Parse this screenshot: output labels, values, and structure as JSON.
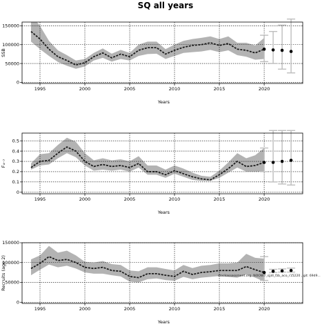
{
  "title": "SQ all years",
  "watermark": "stockassessment.org, NOOW7_sjjdl_fzb_aco_r15220 , git: 69d9...",
  "colors": {
    "band": "#b3b3b3",
    "line": "#1a1a1a",
    "errorbar": "#bdbdbd",
    "point": "#000000"
  },
  "chart_data": [
    {
      "type": "line",
      "panel": "ssb",
      "xlabel": "Years",
      "ylabel": "SSB",
      "xlim": [
        1993,
        2024.3
      ],
      "ylim": [
        -3000,
        160000
      ],
      "x_ticks": [
        1995,
        2000,
        2005,
        2010,
        2015,
        2020
      ],
      "y_ticks": [
        0,
        50000,
        100000,
        150000
      ],
      "grid": true,
      "series": [
        {
          "x": [
            1994,
            1995,
            1996,
            1997,
            1998,
            1999,
            2000,
            2001,
            2002,
            2003,
            2004,
            2005,
            2006,
            2007,
            2008,
            2009,
            2010,
            2011,
            2012,
            2013,
            2014,
            2015,
            2016,
            2017,
            2018,
            2019,
            2020
          ],
          "estimate": [
            135000,
            115000,
            88000,
            68000,
            58000,
            46000,
            52000,
            68000,
            78000,
            65000,
            75000,
            68000,
            85000,
            92000,
            92000,
            75000,
            85000,
            93000,
            98000,
            100000,
            105000,
            98000,
            103000,
            88000,
            85000,
            78000,
            88000
          ],
          "lower": [
            108000,
            88000,
            70000,
            54000,
            44000,
            36000,
            42000,
            58000,
            65000,
            55000,
            62000,
            58000,
            70000,
            75000,
            76000,
            62000,
            70000,
            78000,
            80000,
            82000,
            86000,
            80000,
            85000,
            72000,
            68000,
            60000,
            62000
          ],
          "upper": [
            180000,
            150000,
            110000,
            85000,
            72000,
            58000,
            62000,
            78000,
            90000,
            76000,
            86000,
            78000,
            100000,
            108000,
            108000,
            88000,
            100000,
            110000,
            115000,
            118000,
            122000,
            115000,
            122000,
            105000,
            105000,
            98000,
            118000
          ]
        }
      ],
      "forecast": {
        "x": [
          2020,
          2021,
          2022,
          2023
        ],
        "estimate": [
          88000,
          86000,
          85000,
          82000
        ],
        "lower": [
          55000,
          50000,
          35000,
          25000
        ],
        "upper": [
          125000,
          135000,
          152000,
          168000
        ]
      }
    },
    {
      "type": "line",
      "panel": "fbar",
      "xlabel": "Years",
      "ylabel": "F₄₋₇",
      "xlim": [
        1993,
        2024.3
      ],
      "ylim": [
        -0.015,
        0.575
      ],
      "x_ticks": [
        1995,
        2000,
        2005,
        2010,
        2015,
        2020
      ],
      "y_ticks": [
        0,
        0.1,
        0.2,
        0.3,
        0.4,
        0.5
      ],
      "grid": true,
      "series": [
        {
          "x": [
            1994,
            1995,
            1996,
            1997,
            1998,
            1999,
            2000,
            2001,
            2002,
            2003,
            2004,
            2005,
            2006,
            2007,
            2008,
            2009,
            2010,
            2011,
            2012,
            2013,
            2014,
            2015,
            2016,
            2017,
            2018,
            2019,
            2020
          ],
          "estimate": [
            0.24,
            0.3,
            0.31,
            0.38,
            0.44,
            0.4,
            0.3,
            0.25,
            0.27,
            0.25,
            0.26,
            0.24,
            0.28,
            0.2,
            0.2,
            0.17,
            0.21,
            0.18,
            0.15,
            0.13,
            0.12,
            0.17,
            0.23,
            0.3,
            0.25,
            0.26,
            0.29
          ],
          "lower": [
            0.22,
            0.26,
            0.27,
            0.33,
            0.38,
            0.34,
            0.26,
            0.21,
            0.22,
            0.21,
            0.22,
            0.2,
            0.24,
            0.17,
            0.17,
            0.14,
            0.18,
            0.15,
            0.12,
            0.11,
            0.11,
            0.14,
            0.19,
            0.24,
            0.2,
            0.2,
            0.2
          ],
          "upper": [
            0.28,
            0.37,
            0.38,
            0.46,
            0.53,
            0.49,
            0.38,
            0.31,
            0.33,
            0.31,
            0.32,
            0.3,
            0.35,
            0.26,
            0.26,
            0.22,
            0.26,
            0.23,
            0.19,
            0.16,
            0.15,
            0.21,
            0.29,
            0.38,
            0.33,
            0.36,
            0.43
          ]
        }
      ],
      "forecast": {
        "x": [
          2020,
          2021,
          2022,
          2023
        ],
        "estimate": [
          0.29,
          0.29,
          0.3,
          0.31
        ],
        "lower": [
          0.2,
          0.1,
          0.08,
          0.07
        ],
        "upper": [
          0.43,
          0.6,
          0.6,
          0.6
        ]
      }
    },
    {
      "type": "line",
      "panel": "recruits",
      "xlabel": "Years",
      "ylabel": "Recruits (age 2)",
      "xlim": [
        1993,
        2024.3
      ],
      "ylim": [
        -3000,
        150000
      ],
      "x_ticks": [
        1995,
        2000,
        2005,
        2010,
        2015,
        2020
      ],
      "y_ticks": [
        0,
        50000,
        100000,
        150000
      ],
      "grid": true,
      "series": [
        {
          "x": [
            1994,
            1995,
            1996,
            1997,
            1998,
            1999,
            2000,
            2001,
            2002,
            2003,
            2004,
            2005,
            2006,
            2007,
            2008,
            2009,
            2010,
            2011,
            2012,
            2013,
            2014,
            2015,
            2016,
            2017,
            2018,
            2019,
            2020
          ],
          "estimate": [
            85000,
            98000,
            115000,
            105000,
            108000,
            100000,
            88000,
            85000,
            88000,
            80000,
            78000,
            65000,
            62000,
            72000,
            72000,
            68000,
            65000,
            78000,
            70000,
            75000,
            77000,
            80000,
            80000,
            80000,
            90000,
            82000,
            75000
          ],
          "lower": [
            68000,
            82000,
            95000,
            88000,
            92000,
            85000,
            75000,
            72000,
            72000,
            68000,
            65000,
            52000,
            50000,
            58000,
            60000,
            56000,
            54000,
            64000,
            58000,
            62000,
            64000,
            66000,
            64000,
            62000,
            70000,
            62000,
            52000
          ],
          "upper": [
            108000,
            118000,
            142000,
            125000,
            130000,
            118000,
            102000,
            100000,
            104000,
            96000,
            94000,
            80000,
            78000,
            88000,
            88000,
            84000,
            80000,
            94000,
            86000,
            92000,
            94000,
            98000,
            98000,
            100000,
            122000,
            112000,
            110000
          ]
        }
      ],
      "forecast": {
        "x": [
          2020,
          2021,
          2022,
          2023
        ],
        "estimate": [
          75000,
          78000,
          79000,
          80000
        ],
        "lower": [
          55000,
          75000,
          76000,
          76000
        ],
        "upper": [
          115000,
          83000,
          84000,
          86000
        ]
      }
    }
  ]
}
